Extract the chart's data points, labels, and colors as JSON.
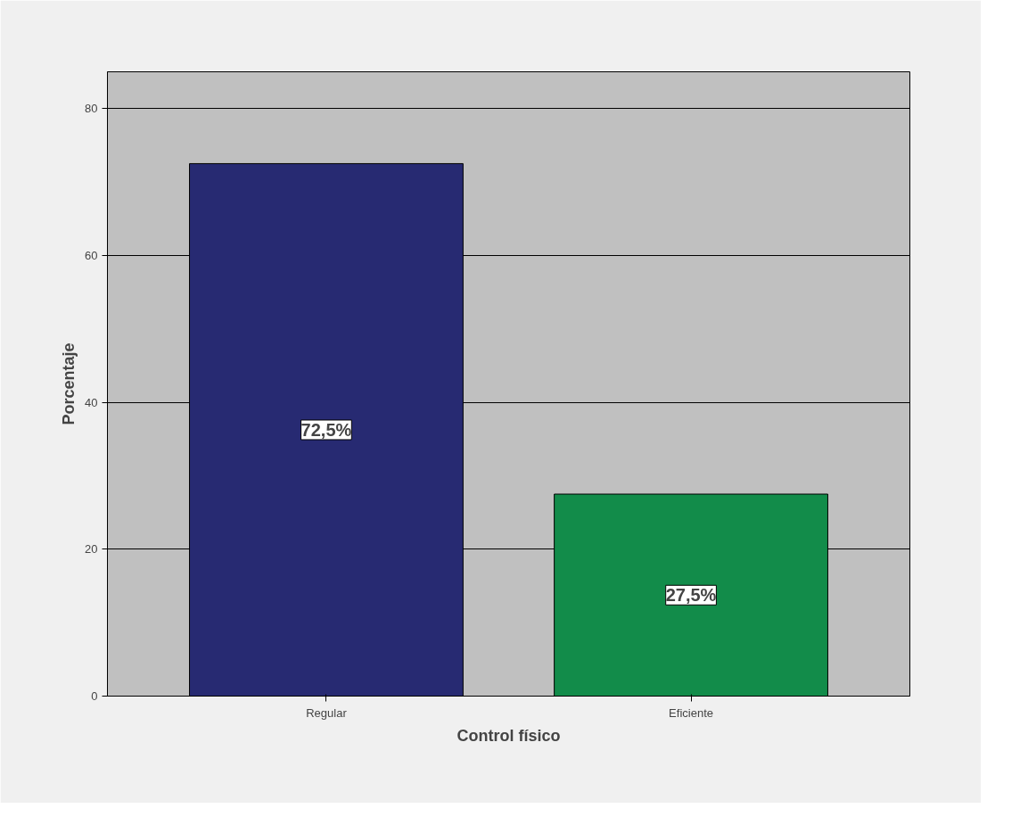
{
  "chart_data": {
    "type": "bar",
    "xlabel": "Control físico",
    "ylabel": "Porcentaje",
    "categories": [
      "Regular",
      "Eficiente"
    ],
    "values": [
      72.5,
      27.5
    ],
    "colors": [
      "#272a72",
      "#128c4a"
    ],
    "value_labels": [
      "72,5%",
      "27,5%"
    ],
    "ylim": [
      0,
      85
    ],
    "yticks": [
      0,
      20,
      40,
      60,
      80
    ],
    "grid": "y"
  }
}
